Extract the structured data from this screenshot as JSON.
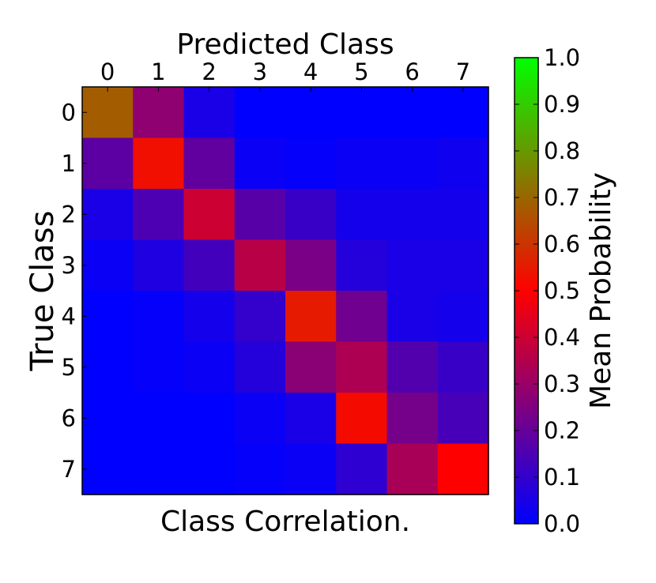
{
  "chart_data": {
    "type": "heatmap",
    "title": "Predicted Class",
    "xlabel": "Predicted Class",
    "ylabel": "True Class",
    "caption": "Class Correlation.",
    "x_categories": [
      "0",
      "1",
      "2",
      "3",
      "4",
      "5",
      "6",
      "7"
    ],
    "y_categories": [
      "0",
      "1",
      "2",
      "3",
      "4",
      "5",
      "6",
      "7"
    ],
    "values": [
      [
        0.68,
        0.28,
        0.05,
        0.0,
        0.0,
        0.0,
        0.0,
        0.0
      ],
      [
        0.18,
        0.53,
        0.19,
        0.02,
        0.01,
        0.02,
        0.02,
        0.03
      ],
      [
        0.05,
        0.15,
        0.4,
        0.17,
        0.11,
        0.04,
        0.04,
        0.04
      ],
      [
        0.02,
        0.06,
        0.13,
        0.36,
        0.24,
        0.07,
        0.05,
        0.05
      ],
      [
        0.0,
        0.01,
        0.04,
        0.1,
        0.55,
        0.22,
        0.05,
        0.04
      ],
      [
        0.0,
        0.01,
        0.02,
        0.07,
        0.27,
        0.34,
        0.16,
        0.11
      ],
      [
        0.0,
        0.0,
        0.0,
        0.02,
        0.05,
        0.52,
        0.23,
        0.14
      ],
      [
        0.0,
        0.0,
        0.0,
        0.01,
        0.02,
        0.09,
        0.33,
        0.5
      ]
    ],
    "colorbar": {
      "label": "Mean Probability",
      "range": [
        0.0,
        1.0
      ],
      "ticks": [
        "0.0",
        "0.1",
        "0.2",
        "0.3",
        "0.4",
        "0.5",
        "0.6",
        "0.7",
        "0.8",
        "0.9",
        "1.0"
      ],
      "colors": [
        "#0000ff",
        "#ff0000",
        "#00ff00"
      ]
    }
  }
}
